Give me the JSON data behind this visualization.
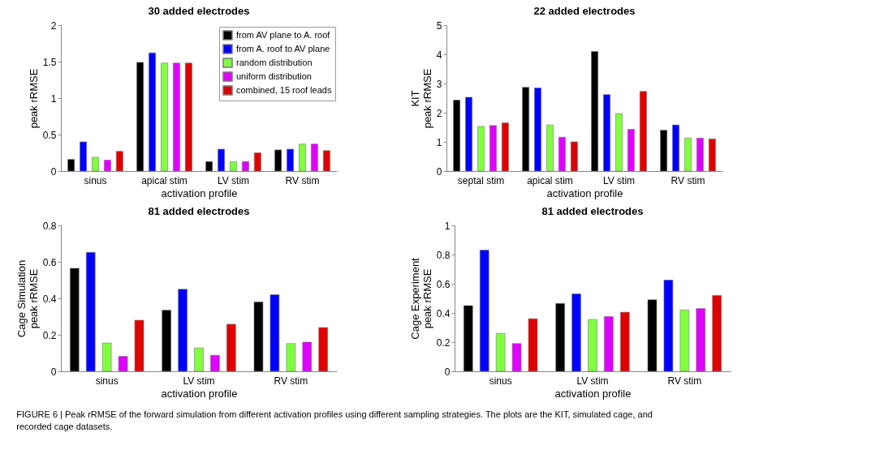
{
  "chart_data": [
    {
      "type": "bar",
      "title": "30 added electrodes",
      "xlabel": "activation profile",
      "ylabel": "peak rRMSE",
      "categories": [
        "sinus",
        "apical stim",
        "LV stim",
        "RV stim"
      ],
      "ylim": [
        0,
        2
      ],
      "yticks": [
        0,
        0.5,
        1,
        1.5,
        2
      ],
      "grid": false,
      "legend": "top right",
      "annotations": [
        "FIGURE 6 | Peak rRMSE of the forward simulation from different activation profiles using different sampling strategies. The plots are the KIT, simulated cage, and recorded cage datasets."
      ],
      "series": [
        {
          "name": "from AV plane to A. roof",
          "color": "#000000",
          "values": [
            0.16,
            1.49,
            0.13,
            0.29
          ]
        },
        {
          "name": "from A. roof to AV plane",
          "color": "#0000ff",
          "values": [
            0.4,
            1.62,
            0.3,
            0.3
          ]
        },
        {
          "name": "random distribution",
          "color": "#80ff40",
          "values": [
            0.19,
            1.48,
            0.13,
            0.37
          ]
        },
        {
          "name": "uniform distribution",
          "color": "#e000ff",
          "values": [
            0.15,
            1.48,
            0.13,
            0.37
          ]
        },
        {
          "name": "combined, 15 roof leads",
          "color": "#e00000",
          "values": [
            0.27,
            1.48,
            0.25,
            0.28
          ]
        }
      ]
    },
    {
      "type": "bar",
      "title": "22 added electrodes",
      "xlabel": "activation profile",
      "ylabel": "KIT\npeak rRMSE",
      "categories": [
        "septal stim",
        "apical stim",
        "LV stim",
        "RV stim"
      ],
      "ylim": [
        0,
        5
      ],
      "yticks": [
        0,
        1,
        2,
        3,
        4,
        5
      ],
      "grid": false,
      "series": [
        {
          "color": "#000000",
          "values": [
            2.43,
            2.87,
            4.1,
            1.4
          ]
        },
        {
          "color": "#0000ff",
          "values": [
            2.53,
            2.85,
            2.62,
            1.58
          ]
        },
        {
          "color": "#80ff40",
          "values": [
            1.53,
            1.58,
            1.97,
            1.13
          ]
        },
        {
          "color": "#e000ff",
          "values": [
            1.56,
            1.16,
            1.43,
            1.13
          ]
        },
        {
          "color": "#e00000",
          "values": [
            1.65,
            1.0,
            2.73,
            1.1
          ]
        }
      ]
    },
    {
      "type": "bar",
      "title": "81 added electrodes",
      "xlabel": "activation profile",
      "ylabel": "Cage Simulation\npeak rRMSE",
      "categories": [
        "sinus",
        "LV stim",
        "RV stim"
      ],
      "ylim": [
        0,
        0.8
      ],
      "yticks": [
        0,
        0.2,
        0.4,
        0.6,
        0.8
      ],
      "grid": false,
      "series": [
        {
          "color": "#000000",
          "values": [
            0.565,
            0.335,
            0.38
          ]
        },
        {
          "color": "#0000ff",
          "values": [
            0.652,
            0.45,
            0.42
          ]
        },
        {
          "color": "#80ff40",
          "values": [
            0.155,
            0.128,
            0.152
          ]
        },
        {
          "color": "#e000ff",
          "values": [
            0.082,
            0.088,
            0.16
          ]
        },
        {
          "color": "#e00000",
          "values": [
            0.28,
            0.258,
            0.24
          ]
        }
      ]
    },
    {
      "type": "bar",
      "title": "81 added electrodes",
      "xlabel": "activation profile",
      "ylabel": "Cage Experiment\npeak rRMSE",
      "categories": [
        "sinus",
        "LV stim",
        "RV stim"
      ],
      "ylim": [
        0,
        1
      ],
      "yticks": [
        0,
        0.2,
        0.4,
        0.6,
        0.8,
        1
      ],
      "grid": false,
      "series": [
        {
          "color": "#000000",
          "values": [
            0.45,
            0.465,
            0.49
          ]
        },
        {
          "color": "#0000ff",
          "values": [
            0.83,
            0.53,
            0.625
          ]
        },
        {
          "color": "#80ff40",
          "values": [
            0.26,
            0.355,
            0.42
          ]
        },
        {
          "color": "#e000ff",
          "values": [
            0.19,
            0.375,
            0.43
          ]
        },
        {
          "color": "#e00000",
          "values": [
            0.36,
            0.405,
            0.52
          ]
        }
      ]
    }
  ]
}
